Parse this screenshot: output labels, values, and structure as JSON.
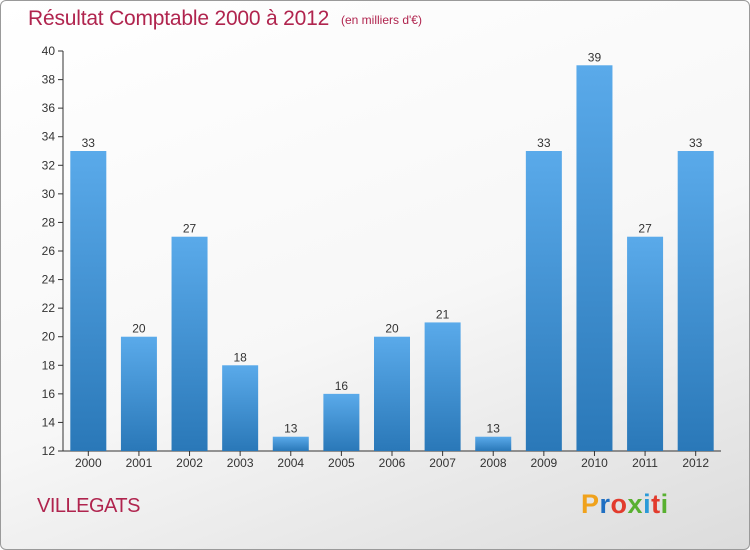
{
  "header": {
    "title": "Résultat Comptable 2000 à 2012",
    "subtitle": "(en milliers d'€)"
  },
  "footer": {
    "commune": "VILLEGATS",
    "logo_text": "Proxiti",
    "logo_colors": [
      "#f0a21c",
      "#1f6fc2",
      "#e23b2d",
      "#58b030",
      "#2a9ad8",
      "#e23b2d",
      "#58b030"
    ]
  },
  "chart_data": {
    "type": "bar",
    "categories": [
      "2000",
      "2001",
      "2002",
      "2003",
      "2004",
      "2005",
      "2006",
      "2007",
      "2008",
      "2009",
      "2010",
      "2011",
      "2012"
    ],
    "values": [
      33,
      20,
      27,
      18,
      13,
      16,
      20,
      21,
      13,
      33,
      39,
      27,
      33
    ],
    "ylim": [
      12,
      40
    ],
    "yticks": [
      12,
      14,
      16,
      18,
      20,
      22,
      24,
      26,
      28,
      30,
      32,
      34,
      36,
      38,
      40
    ],
    "grid": false,
    "bar_color_top": "#5aaaea",
    "bar_color_bottom": "#2a78b8",
    "title": "Résultat Comptable 2000 à 2012",
    "xlabel": "",
    "ylabel": ""
  }
}
